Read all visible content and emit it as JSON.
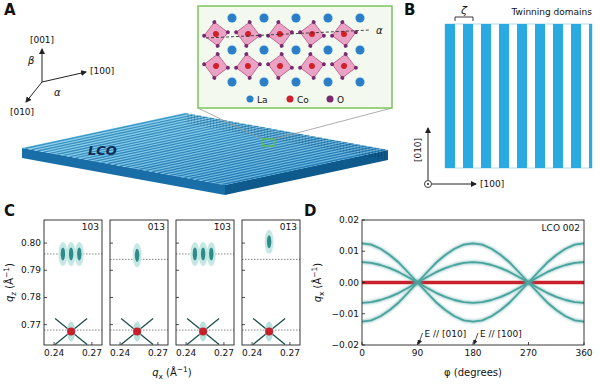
{
  "panel_labels": [
    "A",
    "B",
    "C",
    "D"
  ],
  "panel_a": {
    "material": "LCO",
    "axes": {
      "z": "[001]",
      "x": "[100]",
      "y": "[010]",
      "angle_a": "α",
      "angle_b": "β"
    },
    "inset": {
      "tilt_label": "α",
      "legend": [
        {
          "label": "La",
          "color": "#2a7fc9"
        },
        {
          "label": "Co",
          "color": "#d0202a"
        },
        {
          "label": "O",
          "color": "#7a2a6e"
        }
      ]
    }
  },
  "panel_b": {
    "title": "Twinning domains",
    "period_label": "ζ",
    "axes": {
      "y": "[010]",
      "x": "[100]"
    }
  },
  "chart_data": [
    {
      "type": "scatter",
      "title": "103",
      "xlabel": {
        "symbol": "q",
        "subscript": "x",
        "unit": "(Å",
        "superscript": "−1",
        "close": ")"
      },
      "ylabel": {
        "symbol": "q",
        "subscript": "z",
        "unit": "(Å",
        "superscript": "−1",
        "close": ")"
      },
      "xlim": [
        0.232,
        0.278
      ],
      "ylim": [
        0.7625,
        0.8085
      ],
      "xticks": [
        0.24,
        0.27
      ],
      "yticks": [
        0.77,
        0.78,
        0.79,
        {
          "value": 0.8,
          "label": "0.80"
        }
      ],
      "reference_lines": [
        0.796,
        0.768
      ],
      "series": [
        {
          "color": "#2e8c88",
          "marker": "ellipse",
          "x": [
            0.247,
            0.2535,
            0.26
          ],
          "values": [
            0.796,
            0.796,
            0.796
          ]
        },
        {
          "color": "#c8202a",
          "marker": "cross",
          "x": [
            0.2535
          ],
          "values": [
            0.7675
          ]
        }
      ]
    },
    {
      "type": "scatter",
      "title": "013",
      "tick_labels": "x",
      "xlim": [
        0.232,
        0.278
      ],
      "ylim": [
        0.7625,
        0.8085
      ],
      "xticks": [
        0.24,
        0.27
      ],
      "yticks": [
        0.77,
        0.78,
        0.79,
        0.8
      ],
      "reference_lines": [
        0.794,
        0.768
      ],
      "series": [
        {
          "color": "#2e8c88",
          "marker": "ellipse",
          "x": [
            0.2535
          ],
          "values": [
            0.7955
          ]
        },
        {
          "color": "#c8202a",
          "marker": "cross",
          "x": [
            0.2535
          ],
          "values": [
            0.7675
          ]
        }
      ]
    },
    {
      "type": "scatter",
      "title": "1̄03",
      "tick_labels": "x",
      "xlim": [
        0.232,
        0.278
      ],
      "ylim": [
        0.7625,
        0.8085
      ],
      "xticks": [
        0.24,
        0.27
      ],
      "yticks": [
        0.77,
        0.78,
        0.79,
        0.8
      ],
      "reference_lines": [
        0.796,
        0.768
      ],
      "series": [
        {
          "color": "#2e8c88",
          "marker": "ellipse",
          "x": [
            0.247,
            0.2535,
            0.26
          ],
          "values": [
            0.796,
            0.796,
            0.796
          ]
        },
        {
          "color": "#c8202a",
          "marker": "cross",
          "x": [
            0.2535
          ],
          "values": [
            0.7675
          ]
        }
      ]
    },
    {
      "type": "scatter",
      "title": "01̄3",
      "tick_labels": "x",
      "xlim": [
        0.232,
        0.278
      ],
      "ylim": [
        0.7625,
        0.8085
      ],
      "xticks": [
        0.24,
        0.27
      ],
      "yticks": [
        0.77,
        0.78,
        0.79,
        0.8
      ],
      "reference_lines": [
        0.794,
        0.768
      ],
      "series": [
        {
          "color": "#2e8c88",
          "marker": "ellipse",
          "x": [
            0.2535
          ],
          "values": [
            0.8005
          ]
        },
        {
          "color": "#c8202a",
          "marker": "cross",
          "x": [
            0.2535
          ],
          "values": [
            0.7675
          ]
        }
      ]
    },
    {
      "type": "line",
      "title": "LCO 002",
      "xlabel": "φ (degrees)",
      "ylabel": {
        "symbol": "q",
        "subscript": "x",
        "unit": "(Å",
        "superscript": "−1",
        "close": ")"
      },
      "x": [
        0,
        15,
        30,
        45,
        60,
        75,
        90,
        105,
        120,
        135,
        150,
        165,
        180,
        195,
        210,
        225,
        240,
        255,
        270,
        285,
        300,
        315,
        330,
        345,
        360
      ],
      "xlim": [
        0,
        360
      ],
      "xticks": [
        0,
        90,
        180,
        270,
        360
      ],
      "ylim": [
        -0.02,
        0.02
      ],
      "yticks": [
        {
          "value": -0.02,
          "label": "−0.02"
        },
        {
          "value": -0.01,
          "label": "−0.01"
        },
        {
          "value": 0,
          "label": "0.00"
        },
        0.01,
        0.02
      ],
      "series": [
        {
          "color": "#c8202a",
          "values": [
            0,
            0,
            0,
            0,
            0,
            0,
            0,
            0,
            0,
            0,
            0,
            0,
            0,
            0,
            0,
            0,
            0,
            0,
            0,
            0,
            0,
            0,
            0,
            0,
            0
          ]
        },
        {
          "color": "#4aa39e",
          "values": [
            0.0125,
            0.0121,
            0.0108,
            0.0088,
            0.0063,
            0.0032,
            0,
            -0.0032,
            -0.0063,
            -0.0088,
            -0.0108,
            -0.0121,
            -0.0125,
            -0.0121,
            -0.0108,
            -0.0088,
            -0.0063,
            -0.0032,
            0,
            0.0032,
            0.0063,
            0.0088,
            0.0108,
            0.0121,
            0.0125
          ]
        },
        {
          "color": "#4aa39e",
          "values": [
            -0.0125,
            -0.0121,
            -0.0108,
            -0.0088,
            -0.0063,
            -0.0032,
            0,
            0.0032,
            0.0063,
            0.0088,
            0.0108,
            0.0121,
            0.0125,
            0.0121,
            0.0108,
            0.0088,
            0.0063,
            0.0032,
            0,
            -0.0032,
            -0.0063,
            -0.0088,
            -0.0108,
            -0.0121,
            -0.0125
          ]
        },
        {
          "color": "#4aa39e",
          "values": [
            0.0065,
            0.0063,
            0.0056,
            0.0046,
            0.0033,
            0.0017,
            0,
            -0.0017,
            -0.0033,
            -0.0046,
            -0.0056,
            -0.0063,
            -0.0065,
            -0.0063,
            -0.0056,
            -0.0046,
            -0.0033,
            -0.0017,
            0,
            0.0017,
            0.0033,
            0.0046,
            0.0056,
            0.0063,
            0.0065
          ]
        },
        {
          "color": "#4aa39e",
          "values": [
            -0.0065,
            -0.0063,
            -0.0056,
            -0.0046,
            -0.0033,
            -0.0017,
            0,
            0.0017,
            0.0033,
            0.0046,
            0.0056,
            0.0063,
            0.0065,
            0.0063,
            0.0056,
            0.0046,
            0.0033,
            0.0017,
            0,
            -0.0017,
            -0.0033,
            -0.0046,
            -0.0056,
            -0.0063,
            -0.0065
          ]
        }
      ],
      "annotations": [
        {
          "text": "E // [010]",
          "x": 90
        },
        {
          "text": "E // [100]",
          "x": 180
        }
      ]
    }
  ]
}
